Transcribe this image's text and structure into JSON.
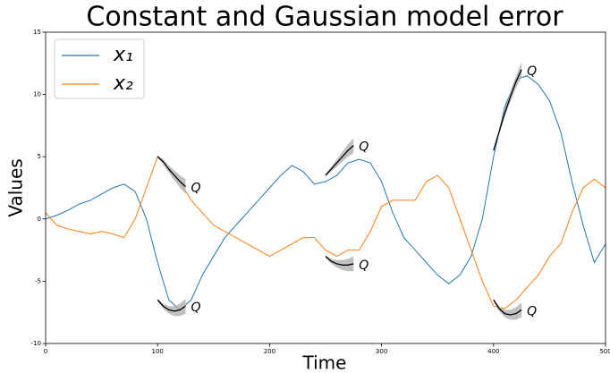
{
  "chart_data": {
    "type": "line",
    "title": "Constant and Gaussian model error",
    "x_label": "Time",
    "y_label": "Values",
    "x": [
      0,
      10,
      20,
      30,
      40,
      50,
      60,
      70,
      80,
      90,
      100,
      110,
      120,
      130,
      140,
      150,
      160,
      170,
      180,
      190,
      200,
      210,
      220,
      230,
      240,
      250,
      260,
      270,
      280,
      290,
      300,
      310,
      320,
      330,
      340,
      350,
      360,
      370,
      380,
      390,
      400,
      410,
      420,
      430,
      440,
      450,
      460,
      470,
      480,
      490,
      500
    ],
    "series": [
      {
        "name": "x₁",
        "color": "#1f77b4",
        "values": [
          0,
          0.3,
          0.7,
          1.2,
          1.5,
          2.0,
          2.5,
          2.8,
          2.2,
          0,
          -3.5,
          -6.5,
          -7.3,
          -6.5,
          -4.5,
          -3,
          -1.5,
          -0.5,
          0.5,
          1.5,
          2.5,
          3.5,
          4.3,
          3.8,
          2.8,
          3.0,
          3.5,
          4.5,
          4.8,
          4.5,
          3,
          0.5,
          -1.5,
          -2.5,
          -3.5,
          -4.5,
          -5.2,
          -4.5,
          -3,
          0,
          5,
          9,
          11.2,
          11.5,
          10.8,
          9.5,
          7,
          3,
          -0.5,
          -3.5,
          -2
        ]
      },
      {
        "name": "x₂",
        "color": "#ff7f0e",
        "values": [
          0.5,
          -0.5,
          -0.8,
          -1,
          -1.2,
          -1.0,
          -1.2,
          -1.5,
          0,
          2.5,
          5,
          4,
          3,
          1.5,
          0.5,
          -0.5,
          -1,
          -1.5,
          -2,
          -2.5,
          -3,
          -2.5,
          -2,
          -1.5,
          -1.5,
          -2.5,
          -3,
          -2.5,
          -2.5,
          -1,
          1,
          1.5,
          1.5,
          1.5,
          3,
          3.5,
          2.5,
          0,
          -2.5,
          -5,
          -7,
          -7.2,
          -6.5,
          -5.5,
          -4.5,
          -3,
          -2,
          0.5,
          2.5,
          3.2,
          2.5
        ]
      }
    ],
    "annotations": [
      {
        "text": "Q",
        "x": [
          100,
          105,
          110,
          115,
          120,
          125
        ],
        "y": [
          -6.5,
          -7.0,
          -7.3,
          -7.4,
          -7.3,
          -7.0
        ],
        "err": [
          0.1,
          0.2,
          0.3,
          0.4,
          0.5,
          0.6
        ]
      },
      {
        "text": "Q",
        "x": [
          100,
          105,
          110,
          115,
          120,
          125
        ],
        "y": [
          5.0,
          4.6,
          4.0,
          3.5,
          3.0,
          2.6
        ],
        "err": [
          0.1,
          0.2,
          0.3,
          0.4,
          0.5,
          0.6
        ]
      },
      {
        "text": "Q",
        "x": [
          250,
          255,
          260,
          265,
          270,
          275
        ],
        "y": [
          3.5,
          4.0,
          4.5,
          5.0,
          5.5,
          5.9
        ],
        "err": [
          0.1,
          0.2,
          0.3,
          0.4,
          0.5,
          0.6
        ]
      },
      {
        "text": "Q",
        "x": [
          250,
          255,
          260,
          265,
          270,
          275
        ],
        "y": [
          -3.0,
          -3.4,
          -3.6,
          -3.7,
          -3.7,
          -3.6
        ],
        "err": [
          0.1,
          0.2,
          0.3,
          0.4,
          0.5,
          0.6
        ]
      },
      {
        "text": "Q",
        "x": [
          400,
          405,
          410,
          415,
          420,
          425
        ],
        "y": [
          5.5,
          7.0,
          8.5,
          9.8,
          11,
          12
        ],
        "err": [
          0.1,
          0.2,
          0.3,
          0.4,
          0.5,
          0.6
        ]
      },
      {
        "text": "Q",
        "x": [
          400,
          405,
          410,
          415,
          420,
          425
        ],
        "y": [
          -6.5,
          -7.2,
          -7.6,
          -7.7,
          -7.6,
          -7.3
        ],
        "err": [
          0.1,
          0.2,
          0.3,
          0.4,
          0.5,
          0.6
        ]
      }
    ],
    "annotation_color": "#000000",
    "band_color": "#b0b0b0",
    "xlim": [
      0,
      500
    ],
    "xticks": [
      0,
      100,
      200,
      300,
      400,
      500
    ],
    "ylim": [
      -10,
      15
    ],
    "yticks": [
      -10,
      -5,
      0,
      5,
      10,
      15
    ],
    "legend": "upper left"
  }
}
